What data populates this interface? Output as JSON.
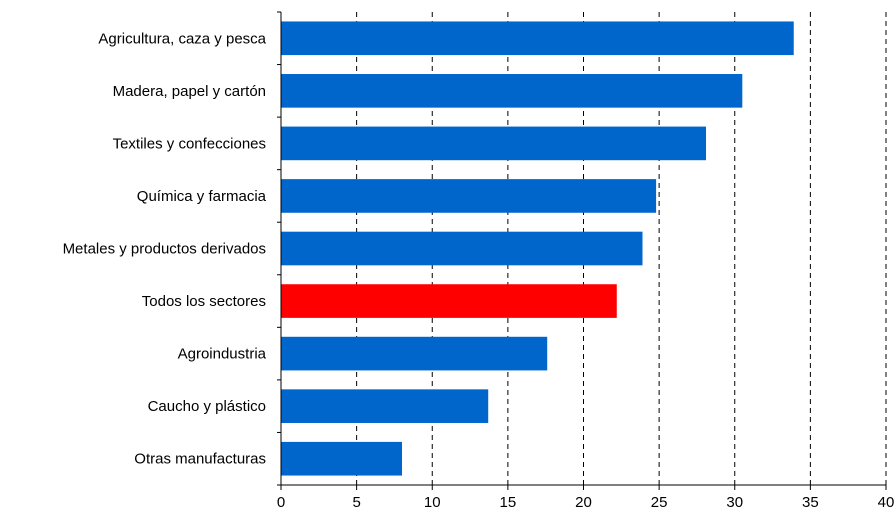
{
  "chart_data": {
    "type": "bar",
    "orientation": "horizontal",
    "categories": [
      "Agricultura, caza y pesca",
      "Madera, papel y cartón",
      "Textiles y confecciones",
      "Química y farmacia",
      "Metales y productos derivados",
      "Todos los sectores",
      "Agroindustria",
      "Caucho y plástico",
      "Otras manufacturas"
    ],
    "values": [
      33.9,
      30.5,
      28.1,
      24.8,
      23.9,
      22.2,
      17.6,
      13.7,
      8.0
    ],
    "bar_colors": [
      "#0066CC",
      "#0066CC",
      "#0066CC",
      "#0066CC",
      "#0066CC",
      "#FF0000",
      "#0066CC",
      "#0066CC",
      "#0066CC"
    ],
    "x_ticks": [
      "0",
      "5",
      "10",
      "15",
      "20",
      "25",
      "30",
      "35",
      "40"
    ],
    "xlim": [
      0,
      40
    ],
    "grid": "vertical dashed",
    "title": "",
    "xlabel": "",
    "ylabel": ""
  }
}
